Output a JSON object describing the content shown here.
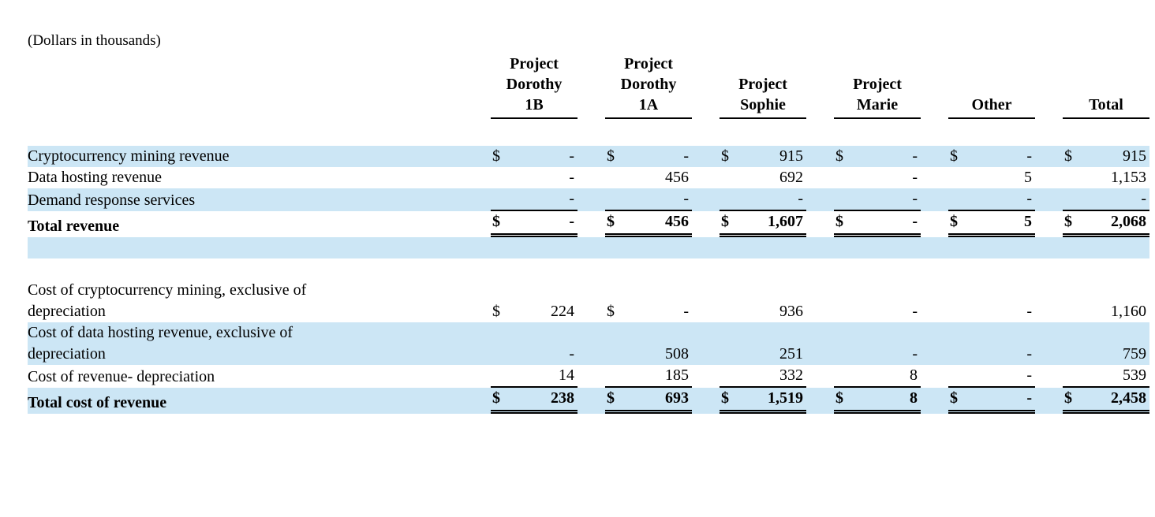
{
  "caption": "(Dollars in thousands)",
  "colors": {
    "stripe": "#cce6f5",
    "text": "#000000",
    "background": "#ffffff",
    "rule": "#000000"
  },
  "table": {
    "columns": [
      {
        "lines": [
          "Project",
          "Dorothy",
          "1B"
        ]
      },
      {
        "lines": [
          "Project",
          "Dorothy",
          "1A"
        ]
      },
      {
        "lines": [
          "Project",
          "Sophie"
        ]
      },
      {
        "lines": [
          "Project",
          "Marie"
        ]
      },
      {
        "lines": [
          "Other"
        ]
      },
      {
        "lines": [
          "Total"
        ]
      }
    ],
    "rows": [
      {
        "label_lines": [
          "Cryptocurrency mining revenue"
        ],
        "shaded": true,
        "bold": false,
        "underline": "none",
        "cells": [
          {
            "cur": "$",
            "val": "-"
          },
          {
            "cur": "$",
            "val": "-"
          },
          {
            "cur": "$",
            "val": "915"
          },
          {
            "cur": "$",
            "val": "-"
          },
          {
            "cur": "$",
            "val": "-"
          },
          {
            "cur": "$",
            "val": "915"
          }
        ]
      },
      {
        "label_lines": [
          "Data hosting revenue"
        ],
        "shaded": false,
        "bold": false,
        "underline": "none",
        "cells": [
          {
            "cur": "",
            "val": "-"
          },
          {
            "cur": "",
            "val": "456"
          },
          {
            "cur": "",
            "val": "692"
          },
          {
            "cur": "",
            "val": "-"
          },
          {
            "cur": "",
            "val": "5"
          },
          {
            "cur": "",
            "val": "1,153"
          }
        ]
      },
      {
        "label_lines": [
          "Demand response services"
        ],
        "shaded": true,
        "bold": false,
        "underline": "single",
        "cells": [
          {
            "cur": "",
            "val": "-"
          },
          {
            "cur": "",
            "val": "-"
          },
          {
            "cur": "",
            "val": "-"
          },
          {
            "cur": "",
            "val": "-"
          },
          {
            "cur": "",
            "val": "-"
          },
          {
            "cur": "",
            "val": "-"
          }
        ]
      },
      {
        "label_lines": [
          "Total revenue"
        ],
        "shaded": false,
        "bold": true,
        "underline": "double",
        "cells": [
          {
            "cur": "$",
            "val": "-"
          },
          {
            "cur": "$",
            "val": "456"
          },
          {
            "cur": "$",
            "val": "1,607"
          },
          {
            "cur": "$",
            "val": "-"
          },
          {
            "cur": "$",
            "val": "5"
          },
          {
            "cur": "$",
            "val": "2,068"
          }
        ]
      },
      {
        "spacer": true,
        "shaded": true
      },
      {
        "spacer": true,
        "shaded": false
      },
      {
        "label_lines": [
          "Cost of cryptocurrency mining, exclusive of",
          "depreciation"
        ],
        "shaded": false,
        "bold": false,
        "underline": "none",
        "cells": [
          {
            "cur": "$",
            "val": "224"
          },
          {
            "cur": "$",
            "val": "-"
          },
          {
            "cur": "",
            "val": "936"
          },
          {
            "cur": "",
            "val": "-"
          },
          {
            "cur": "",
            "val": "-"
          },
          {
            "cur": "",
            "val": "1,160"
          }
        ]
      },
      {
        "label_lines": [
          "Cost of data hosting revenue, exclusive of",
          "depreciation"
        ],
        "shaded": true,
        "bold": false,
        "underline": "none",
        "cells": [
          {
            "cur": "",
            "val": "-"
          },
          {
            "cur": "",
            "val": "508"
          },
          {
            "cur": "",
            "val": "251"
          },
          {
            "cur": "",
            "val": "-"
          },
          {
            "cur": "",
            "val": "-"
          },
          {
            "cur": "",
            "val": "759"
          }
        ]
      },
      {
        "label_lines": [
          "Cost of revenue- depreciation"
        ],
        "shaded": false,
        "bold": false,
        "underline": "single",
        "cells": [
          {
            "cur": "",
            "val": "14"
          },
          {
            "cur": "",
            "val": "185"
          },
          {
            "cur": "",
            "val": "332"
          },
          {
            "cur": "",
            "val": "8"
          },
          {
            "cur": "",
            "val": "-"
          },
          {
            "cur": "",
            "val": "539"
          }
        ]
      },
      {
        "label_lines": [
          "Total cost of revenue"
        ],
        "shaded": true,
        "bold": true,
        "underline": "double",
        "cells": [
          {
            "cur": "$",
            "val": "238"
          },
          {
            "cur": "$",
            "val": "693"
          },
          {
            "cur": "$",
            "val": "1,519"
          },
          {
            "cur": "$",
            "val": "8"
          },
          {
            "cur": "$",
            "val": "-"
          },
          {
            "cur": "$",
            "val": "2,458"
          }
        ]
      }
    ]
  }
}
